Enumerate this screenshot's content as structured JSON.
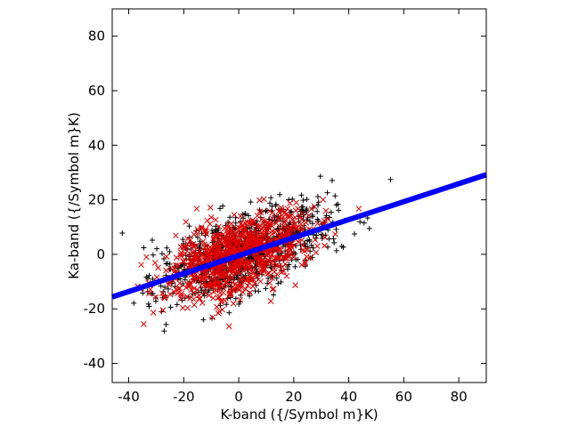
{
  "chart_data": {
    "type": "scatter",
    "title": "",
    "xlabel": "K-band ({/Symbol m}K)",
    "ylabel": "Ka-band ({/Symbol m}K)",
    "xlim": [
      -46,
      90
    ],
    "ylim": [
      -47,
      90
    ],
    "xticks": [
      -40,
      -20,
      0,
      20,
      40,
      60,
      80
    ],
    "yticks": [
      -40,
      -20,
      0,
      20,
      40,
      60,
      80
    ],
    "grid": false,
    "legend": "none",
    "series": [
      {
        "marker": "plus",
        "color": "#000000",
        "count": 900,
        "x_mean": 2,
        "x_std": 15,
        "y_slope": 0.34,
        "y_noise_std": 7
      },
      {
        "marker": "x",
        "color": "#dd0000",
        "count": 900,
        "x_mean": 0,
        "x_std": 13,
        "y_slope": 0.34,
        "y_noise_std": 7
      },
      {
        "marker": "line",
        "color": "#0000ff",
        "x": [
          -46,
          90
        ],
        "y": [
          -15.6,
          29.2
        ]
      }
    ]
  }
}
